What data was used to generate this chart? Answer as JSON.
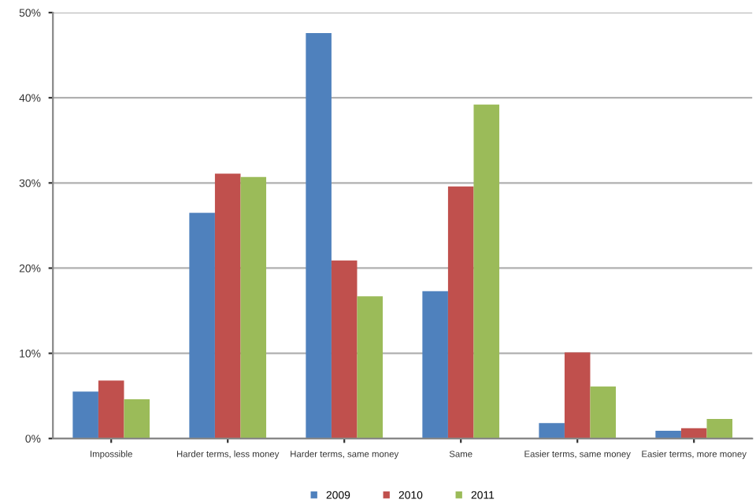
{
  "chart_data": {
    "type": "bar",
    "categories": [
      "Impossible",
      "Harder terms, less money",
      "Harder terms, same money",
      "Same",
      "Easier terms, same money",
      "Easier terms, more money"
    ],
    "series": [
      {
        "name": "2009",
        "color": "#4f81bd",
        "values": [
          5.5,
          26.5,
          47.6,
          17.3,
          1.8,
          0.9
        ]
      },
      {
        "name": "2010",
        "color": "#c0504d",
        "values": [
          6.8,
          31.1,
          20.9,
          29.6,
          10.1,
          1.2
        ]
      },
      {
        "name": "2011",
        "color": "#9bbb59",
        "values": [
          4.6,
          30.7,
          16.7,
          39.2,
          6.1,
          2.3
        ]
      }
    ],
    "ylim": [
      0,
      50
    ],
    "yticks": [
      {
        "value": 0,
        "label": "0%"
      },
      {
        "value": 10,
        "label": "10%"
      },
      {
        "value": 20,
        "label": "20%"
      },
      {
        "value": 30,
        "label": "30%"
      },
      {
        "value": 40,
        "label": "40%"
      },
      {
        "value": 50,
        "label": "50%"
      }
    ],
    "grid": "y",
    "legend": "bottom"
  }
}
